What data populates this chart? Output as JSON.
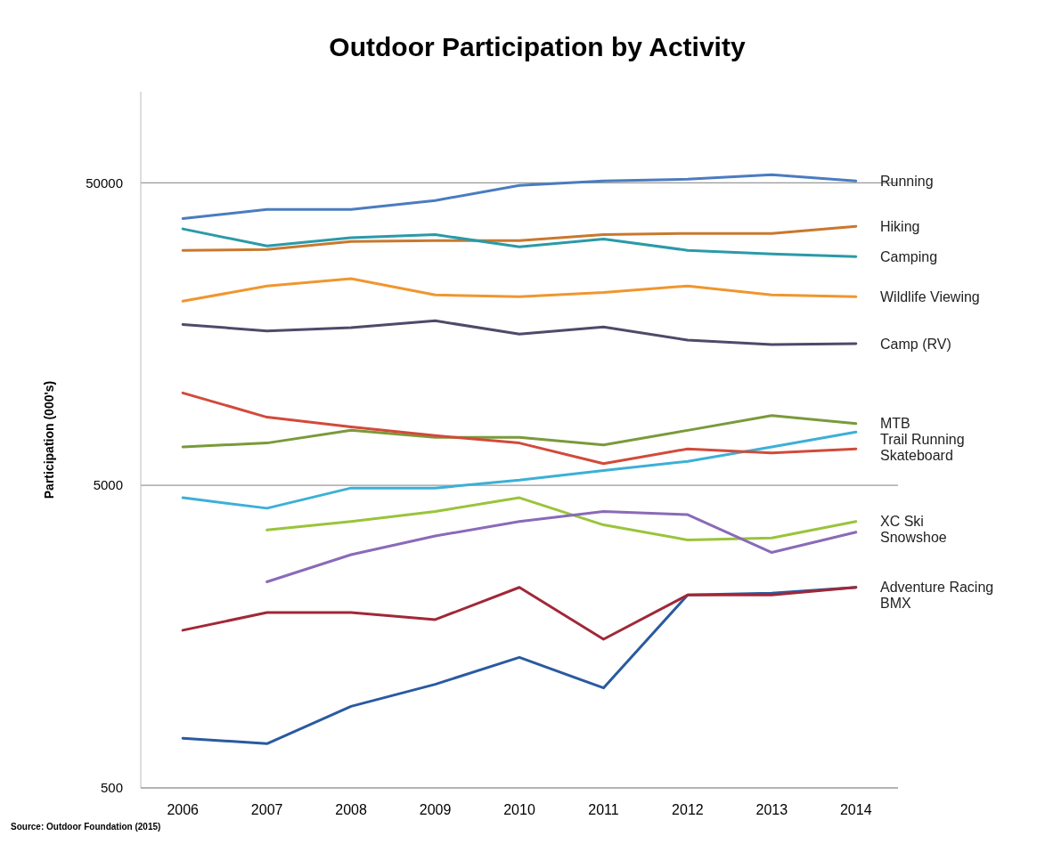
{
  "chart_data": {
    "type": "line",
    "title": "Outdoor Participation by Activity",
    "ylabel": "Participation (000's)",
    "categories": [
      "2006",
      "2007",
      "2008",
      "2009",
      "2010",
      "2011",
      "2012",
      "2013",
      "2014"
    ],
    "log": true,
    "ylim": [
      500,
      100000
    ],
    "yticks": [
      500,
      5000,
      50000
    ],
    "grid": "y",
    "legend": "right",
    "series": [
      {
        "name": "Running",
        "color": "#4a7cc0",
        "values": [
          38100,
          40800,
          40800,
          43700,
          49000,
          50700,
          51400,
          53200,
          50700
        ]
      },
      {
        "name": "Hiking",
        "color": "#c9782e",
        "values": [
          29900,
          30100,
          32000,
          32200,
          32200,
          33700,
          34000,
          34000,
          35900
        ]
      },
      {
        "name": "Camping",
        "color": "#2a9aa8",
        "values": [
          35200,
          30900,
          32900,
          33700,
          30700,
          32600,
          29900,
          29100,
          28500
        ]
      },
      {
        "name": "Wildlife Viewing",
        "color": "#f0962e",
        "values": [
          20300,
          22800,
          24100,
          21300,
          21000,
          21700,
          22800,
          21300,
          21000
        ]
      },
      {
        "name": "Camp (RV)",
        "color": "#4e4a6a",
        "values": [
          17000,
          16200,
          16600,
          17500,
          15800,
          16700,
          15100,
          14600,
          14700
        ]
      },
      {
        "name": "MTB",
        "color": "#7a9a3a",
        "values": [
          6700,
          6900,
          7600,
          7200,
          7200,
          6800,
          7600,
          8500,
          8000
        ]
      },
      {
        "name": "Trail Running",
        "color": "#3cb0d6",
        "values": [
          4550,
          4200,
          4900,
          4900,
          5200,
          5600,
          6000,
          6700,
          7500
        ]
      },
      {
        "name": "Skateboard",
        "color": "#d24a3a",
        "values": [
          10100,
          8400,
          7800,
          7300,
          6900,
          5900,
          6600,
          6400,
          6600
        ]
      },
      {
        "name": "XC Ski",
        "color": "#9ac43a",
        "values": [
          null,
          3560,
          3800,
          4100,
          4550,
          3700,
          3300,
          3350,
          3800
        ]
      },
      {
        "name": "Snowshoe",
        "color": "#8a6ab8",
        "values": [
          null,
          2400,
          2950,
          3400,
          3800,
          4100,
          4000,
          3000,
          3500
        ]
      },
      {
        "name": "Adventure Racing",
        "color": "#2a5aa0",
        "values": [
          730,
          700,
          930,
          1100,
          1350,
          1070,
          2170,
          2200,
          2300
        ]
      },
      {
        "name": "BMX",
        "color": "#a02838",
        "values": [
          1660,
          1900,
          1900,
          1800,
          2300,
          1550,
          2170,
          2170,
          2300
        ]
      }
    ],
    "annotations": [
      "Source: Outdoor Foundation (2015)"
    ]
  }
}
